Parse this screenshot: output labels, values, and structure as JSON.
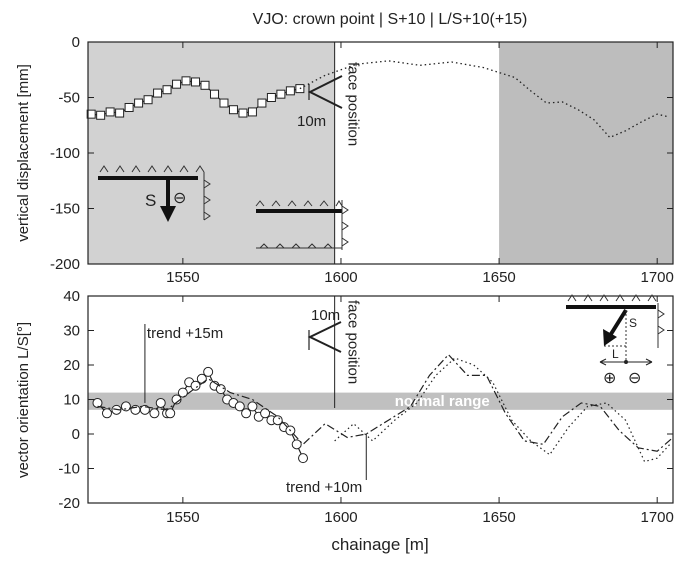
{
  "figure": {
    "title": "VJO: crown point | S+10 | L/S+10(+15)",
    "xlabel": "chainage [m]"
  },
  "chart_data": [
    {
      "type": "line",
      "title": "VJO: crown point | S+10 | L/S+10(+15)",
      "ylabel": "vertical displacement [mm]",
      "xlim": [
        1520,
        1705
      ],
      "ylim": [
        -200,
        0
      ],
      "x_ticks": [
        1550,
        1600,
        1650,
        1700
      ],
      "y_ticks": [
        0,
        -50,
        -100,
        -150,
        -200
      ],
      "shaded_regions": [
        {
          "x": [
            1520,
            1598
          ],
          "color": "#d2d2d2"
        },
        {
          "x": [
            1650,
            1705
          ],
          "color": "#bdbdbd"
        }
      ],
      "series": [
        {
          "style": "solid line with square markers",
          "x": [
            1521,
            1524,
            1527,
            1530,
            1533,
            1536,
            1539,
            1542,
            1545,
            1548,
            1551,
            1554,
            1557,
            1560,
            1563,
            1566,
            1569,
            1572,
            1575,
            1578,
            1581,
            1584,
            1587
          ],
          "y": [
            -65,
            -66,
            -63,
            -64,
            -59,
            -55,
            -52,
            -46,
            -43,
            -38,
            -35,
            -36,
            -39,
            -47,
            -55,
            -61,
            -64,
            -63,
            -55,
            -50,
            -47,
            -44,
            -42
          ]
        },
        {
          "style": "dotted line",
          "x": [
            1587,
            1595,
            1605,
            1615,
            1625,
            1635,
            1645,
            1655,
            1660,
            1665,
            1670,
            1675,
            1680,
            1685,
            1690,
            1695,
            1700,
            1703
          ],
          "y": [
            -42,
            -30,
            -20,
            -17,
            -21,
            -18,
            -23,
            -32,
            -44,
            -55,
            -54,
            -61,
            -70,
            -86,
            -80,
            -72,
            -65,
            -67
          ]
        }
      ],
      "annotations": {
        "face_label": "face position",
        "scale_label": "10m",
        "face_x": 1598,
        "symbol_minus": "⊖",
        "symbol_s": "S"
      }
    },
    {
      "type": "line",
      "ylabel": "vector orientation L/S[°]",
      "xlabel": "chainage [m]",
      "xlim": [
        1520,
        1705
      ],
      "ylim": [
        -20,
        40
      ],
      "x_ticks": [
        1550,
        1600,
        1650,
        1700
      ],
      "y_ticks": [
        40,
        30,
        20,
        10,
        0,
        -10,
        -20
      ],
      "band": {
        "y": [
          7,
          12
        ],
        "label": "normal range",
        "color": "#c0c0c0"
      },
      "series": [
        {
          "style": "solid line with circle markers",
          "x": [
            1523,
            1526,
            1529,
            1532,
            1535,
            1538,
            1541,
            1543,
            1545,
            1546,
            1548,
            1550,
            1552,
            1554,
            1556,
            1558,
            1560,
            1562,
            1564,
            1566,
            1568,
            1570,
            1572,
            1574,
            1576,
            1578,
            1580,
            1582,
            1584,
            1586,
            1588
          ],
          "y": [
            9,
            6,
            7,
            8,
            7,
            7,
            6,
            9,
            6,
            6,
            10,
            12,
            15,
            14,
            16,
            18,
            14,
            13,
            10,
            9,
            8,
            6,
            8,
            5,
            6,
            4,
            4,
            2,
            1,
            -3,
            -7
          ]
        },
        {
          "style": "dash-dot line",
          "x": [
            1523,
            1530,
            1537,
            1545,
            1552,
            1558,
            1565,
            1572,
            1580,
            1588,
            1595,
            1602,
            1608,
            1615,
            1622,
            1628,
            1634,
            1640,
            1646,
            1652,
            1658,
            1664,
            1670,
            1676,
            1682,
            1688,
            1694,
            1700,
            1705
          ],
          "y": [
            8,
            7,
            8,
            7,
            12,
            16,
            12,
            10,
            5,
            -3,
            3,
            -1,
            0,
            4,
            8,
            17,
            23,
            17,
            17,
            6,
            -2,
            -3,
            5,
            9,
            8,
            1,
            -4,
            -5,
            -1
          ]
        },
        {
          "style": "dotted line",
          "x": [
            1598,
            1604,
            1610,
            1617,
            1624,
            1630,
            1636,
            1642,
            1648,
            1654,
            1660,
            1666,
            1672,
            1678,
            1684,
            1690,
            1696,
            1700,
            1704
          ],
          "y": [
            -2,
            3,
            -2,
            4,
            9,
            17,
            22,
            20,
            15,
            4,
            -2,
            -6,
            2,
            8,
            9,
            4,
            -8,
            -7,
            -3
          ]
        }
      ],
      "annotations": {
        "trend15_label": "trend +15m",
        "trend15_x": 1538,
        "trend10_label": "trend +10m",
        "trend10_x": 1608,
        "face_label": "face position",
        "scale_label": "10m",
        "face_x": 1598,
        "symbol_plus": "⊕",
        "symbol_minus": "⊖",
        "symbol_s": "S",
        "symbol_l": "L"
      }
    }
  ]
}
